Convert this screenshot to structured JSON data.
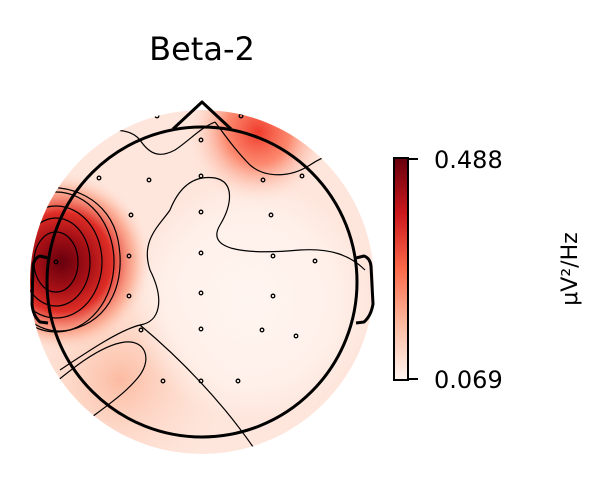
{
  "chart_data": {
    "type": "heatmap",
    "subtype": "scalp-topomap",
    "title": "Beta-2",
    "colormap": "Reds",
    "colorbar": {
      "min": 0.069,
      "max": 0.488,
      "min_label": "0.069",
      "max_label": "0.488",
      "unit": "μV²/Hz"
    },
    "contours": true,
    "sensors": "shown",
    "hotspots": [
      {
        "region": "left-temporal",
        "level": "max"
      },
      {
        "region": "frontal-right",
        "level": "moderate"
      }
    ]
  }
}
